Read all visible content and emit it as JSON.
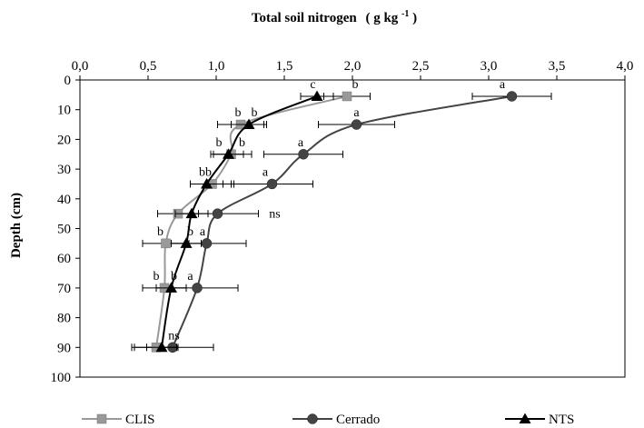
{
  "chart_data": {
    "type": "line",
    "title": "Total soil nitrogen",
    "title_unit": "( g kg",
    "title_unit_exp": "-1",
    "title_unit_close": ")",
    "xlabel": "Total soil nitrogen ( g kg-1)",
    "ylabel": "Depth (cm)",
    "x_axis_position": "top",
    "y_axis_inverted": true,
    "xlim": [
      0,
      4
    ],
    "ylim": [
      0,
      100
    ],
    "x_ticks": [
      "0,0",
      "0,5",
      "1,0",
      "1,5",
      "2,0",
      "2,5",
      "3,0",
      "3,5",
      "4,0"
    ],
    "y_ticks": [
      "0",
      "10",
      "20",
      "30",
      "40",
      "50",
      "60",
      "70",
      "80",
      "90",
      "100"
    ],
    "legend_position": "bottom",
    "grid": false,
    "depths": [
      5.5,
      15,
      25,
      35,
      45,
      55,
      70,
      90
    ],
    "series": [
      {
        "name": "CLIS",
        "color": "#999999",
        "marker": "square",
        "values": [
          1.96,
          1.18,
          1.11,
          0.97,
          0.72,
          0.63,
          0.62,
          0.56
        ],
        "errors": [
          0.17,
          0.17,
          0.15,
          0.16,
          0.15,
          0.17,
          0.16,
          0.16
        ]
      },
      {
        "name": "Cerrado",
        "color": "#444444",
        "marker": "circle",
        "values": [
          3.17,
          2.03,
          1.64,
          1.41,
          1.01,
          0.93,
          0.86,
          0.68
        ],
        "errors": [
          0.29,
          0.28,
          0.29,
          0.3,
          0.3,
          0.29,
          0.3,
          0.3
        ]
      },
      {
        "name": "NTS",
        "color": "#000000",
        "marker": "triangle",
        "values": [
          1.74,
          1.24,
          1.09,
          0.93,
          0.82,
          0.78,
          0.67,
          0.6
        ],
        "errors": [
          0.12,
          0.13,
          0.11,
          0.12,
          0.12,
          0.11,
          0.11,
          0.11
        ]
      }
    ],
    "annotations": [
      {
        "text": "a",
        "x": 3.1,
        "y": 2.8
      },
      {
        "text": "b",
        "x": 2.02,
        "y": 2.8
      },
      {
        "text": "c",
        "x": 1.71,
        "y": 2.8
      },
      {
        "text": "b",
        "x": 1.16,
        "y": 12.3
      },
      {
        "text": "b",
        "x": 1.28,
        "y": 12.3
      },
      {
        "text": "a",
        "x": 2.03,
        "y": 12.3
      },
      {
        "text": "b",
        "x": 1.02,
        "y": 22.3
      },
      {
        "text": "b",
        "x": 1.19,
        "y": 22.3
      },
      {
        "text": "a",
        "x": 1.62,
        "y": 22.3
      },
      {
        "text": "bb",
        "x": 0.92,
        "y": 32.3
      },
      {
        "text": "a",
        "x": 1.36,
        "y": 32.3
      },
      {
        "text": "ns",
        "x": 1.43,
        "y": 46.3
      },
      {
        "text": "b",
        "x": 0.59,
        "y": 52.3
      },
      {
        "text": "b",
        "x": 0.81,
        "y": 52.3
      },
      {
        "text": "a",
        "x": 0.9,
        "y": 52.3
      },
      {
        "text": "b",
        "x": 0.56,
        "y": 67.3
      },
      {
        "text": "b",
        "x": 0.69,
        "y": 67.3
      },
      {
        "text": "a",
        "x": 0.81,
        "y": 67.3
      },
      {
        "text": "ns",
        "x": 0.69,
        "y": 87.3
      }
    ]
  }
}
